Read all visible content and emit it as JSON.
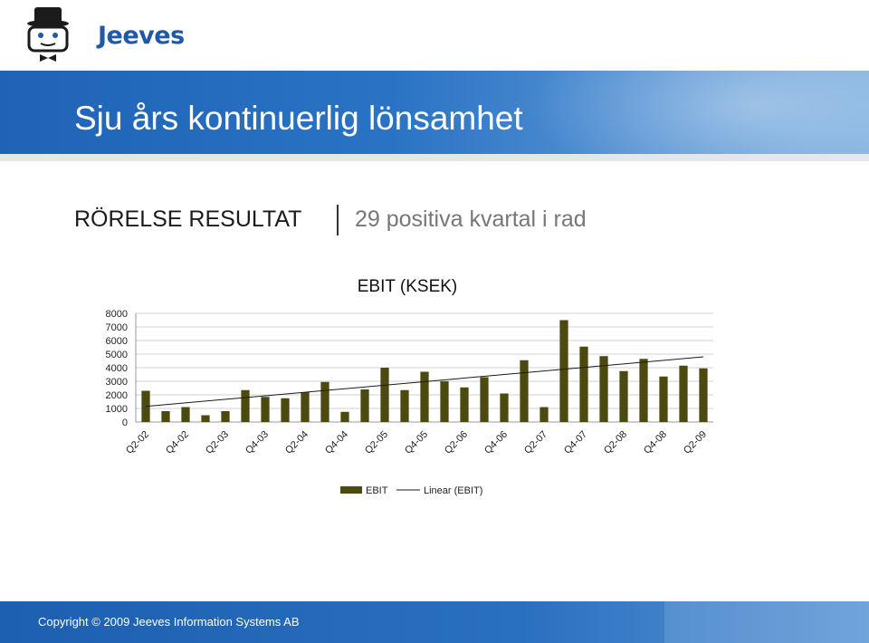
{
  "brand": {
    "name": "Jeeves",
    "logo_icon": "butler-logo-icon"
  },
  "header": {
    "title": "Sju års kontinuerlig lönsamhet"
  },
  "subtitle": {
    "main": "RÖRELSE RESULTAT",
    "secondary": "29 positiva kvartal i rad"
  },
  "footer": {
    "copyright": "Copyright © 2009 Jeeves Information Systems AB"
  },
  "colors": {
    "bar": "#4d4a10",
    "banner": "#2a70c0",
    "trend": "#1a1a1a"
  },
  "chart_data": {
    "type": "bar",
    "title": "EBIT   (KSEK)",
    "categories": [
      "Q2-02",
      "Q3-02",
      "Q4-02",
      "Q1-03",
      "Q2-03",
      "Q3-03",
      "Q4-03",
      "Q1-04",
      "Q2-04",
      "Q3-04",
      "Q4-04",
      "Q1-05",
      "Q2-05",
      "Q3-05",
      "Q4-05",
      "Q1-06",
      "Q2-06",
      "Q3-06",
      "Q4-06",
      "Q1-07",
      "Q2-07",
      "Q3-07",
      "Q4-07",
      "Q1-08",
      "Q2-08",
      "Q3-08",
      "Q4-08",
      "Q1-09",
      "Q2-09"
    ],
    "tick_labels": [
      "Q2-02",
      "Q4-02",
      "Q2-03",
      "Q4-03",
      "Q2-04",
      "Q4-04",
      "Q2-05",
      "Q4-05",
      "Q2-06",
      "Q4-06",
      "Q2-07",
      "Q4-07",
      "Q2-08",
      "Q4-08",
      "Q2-09"
    ],
    "series": [
      {
        "name": "EBIT",
        "values": [
          2300,
          800,
          1100,
          500,
          800,
          2350,
          1850,
          1750,
          2200,
          2950,
          750,
          2400,
          4000,
          2350,
          3700,
          3000,
          2550,
          3300,
          2100,
          4550,
          1100,
          7500,
          5550,
          4850,
          3750,
          4650,
          3350,
          4150,
          3950
        ]
      }
    ],
    "trendline": {
      "name": "Linear (EBIT)",
      "start": 1150,
      "end": 4800
    },
    "y_ticks": [
      0,
      1000,
      2000,
      3000,
      4000,
      5000,
      6000,
      7000,
      8000
    ],
    "ylim": [
      0,
      8000
    ],
    "grid": true,
    "legend": "bottom"
  }
}
